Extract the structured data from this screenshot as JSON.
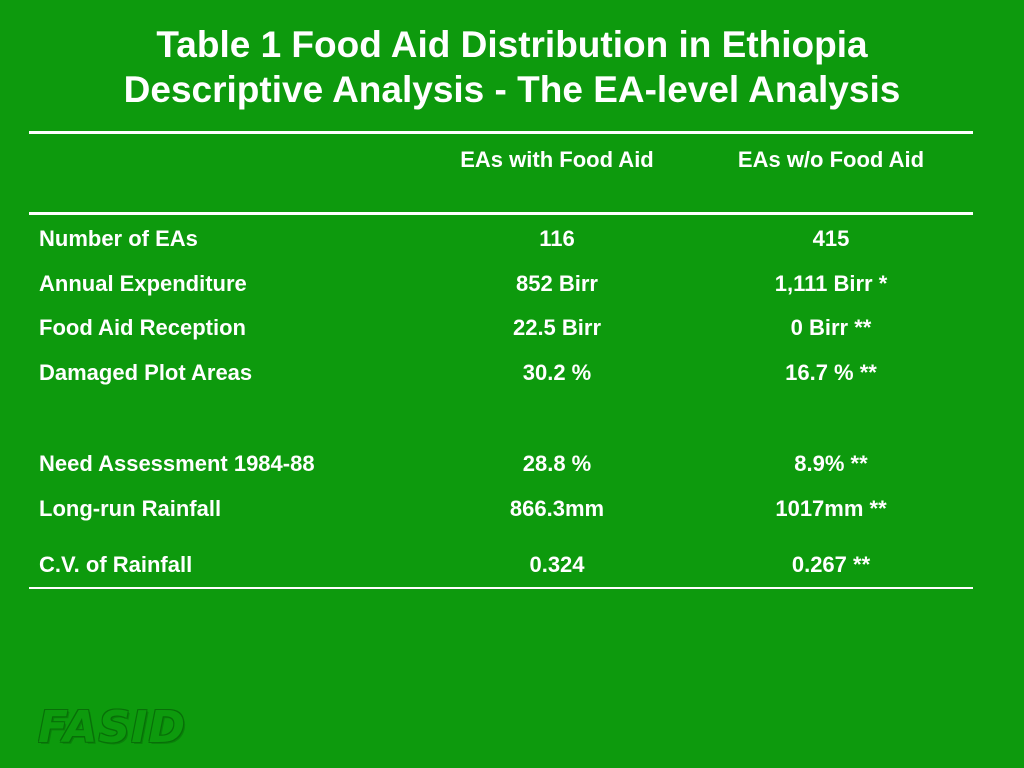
{
  "title": {
    "line1": "Table 1  Food Aid Distribution in Ethiopia",
    "line2": "Descriptive Analysis - The EA-level Analysis"
  },
  "table": {
    "headers": [
      "",
      "EAs with Food Aid",
      "EAs w/o Food Aid"
    ],
    "rows": [
      {
        "label": "Number of EAs",
        "with_aid": "116",
        "without_aid": "415"
      },
      {
        "label": "Annual Expenditure",
        "with_aid": "852 Birr",
        "without_aid": "1,111 Birr *"
      },
      {
        "label": "Food Aid Reception",
        "with_aid": "22.5 Birr",
        "without_aid": "0 Birr **"
      },
      {
        "label": "Damaged Plot Areas",
        "with_aid": "30.2 %",
        "without_aid": "16.7 % **"
      },
      {
        "label": "Need Assessment 1984-88",
        "with_aid": "28.8 %",
        "without_aid": "8.9% **"
      },
      {
        "label": "Long-run Rainfall",
        "with_aid": "866.3mm",
        "without_aid": "1017mm **"
      },
      {
        "label": "C.V. of Rainfall",
        "with_aid": "0.324",
        "without_aid": "0.267 **"
      }
    ]
  },
  "logo": {
    "text": "FASID"
  },
  "colors": {
    "background": "#0d9a0d",
    "text": "#ffffff"
  }
}
